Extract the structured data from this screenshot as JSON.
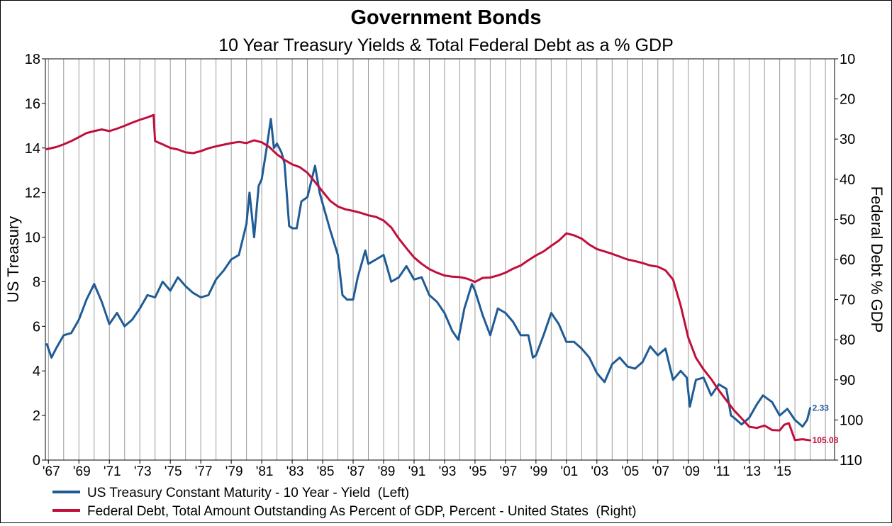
{
  "chart_data": {
    "type": "line",
    "title": "Government Bonds",
    "subtitle": "10 Year Treasury Yields & Total Federal Debt as a % GDP",
    "ylabel_left": "US Treasury",
    "ylabel_right": "Federal Debt % GDP",
    "ylim_left": [
      0,
      18
    ],
    "ylim_right": [
      10,
      110
    ],
    "right_axis_inverted": true,
    "xlim": [
      1966.8,
      2018.6
    ],
    "x_ticks": [
      1967,
      1969,
      1971,
      1973,
      1975,
      1977,
      1979,
      1981,
      1983,
      1985,
      1987,
      1989,
      1991,
      1993,
      1995,
      1997,
      1999,
      2001,
      2003,
      2005,
      2007,
      2009,
      2011,
      2013,
      2015
    ],
    "x_tick_labels": [
      "'67",
      "'69",
      "'71",
      "'73",
      "'75",
      "'77",
      "'79",
      "'81",
      "'83",
      "'85",
      "'87",
      "'89",
      "'91",
      "'93",
      "'95",
      "'97",
      "'99",
      "'01",
      "'03",
      "'05",
      "'07",
      "'09",
      "'11",
      "'13",
      "'15"
    ],
    "left_ticks": [
      0,
      2,
      4,
      6,
      8,
      10,
      12,
      14,
      16,
      18
    ],
    "right_ticks": [
      10,
      20,
      30,
      40,
      50,
      60,
      70,
      80,
      90,
      100,
      110
    ],
    "grid": "vertical",
    "legend_position": "bottom-left",
    "series": [
      {
        "name": "US Treasury Constant Maturity - 10 Year - Yield  (Left)",
        "axis": "left",
        "color": "#1f5b94",
        "end_label": "2.33",
        "x": [
          1966.9,
          1967.2,
          1967.5,
          1968.0,
          1968.5,
          1969.0,
          1969.5,
          1970.0,
          1970.5,
          1971.0,
          1971.5,
          1972.0,
          1972.5,
          1973.0,
          1973.5,
          1974.0,
          1974.5,
          1975.0,
          1975.5,
          1976.0,
          1976.5,
          1977.0,
          1977.5,
          1978.0,
          1978.5,
          1979.0,
          1979.5,
          1980.0,
          1980.2,
          1980.5,
          1980.8,
          1981.0,
          1981.3,
          1981.6,
          1981.8,
          1982.0,
          1982.3,
          1982.5,
          1982.8,
          1983.0,
          1983.3,
          1983.6,
          1984.0,
          1984.5,
          1984.8,
          1985.0,
          1985.5,
          1986.0,
          1986.3,
          1986.6,
          1987.0,
          1987.3,
          1987.8,
          1988.0,
          1988.5,
          1989.0,
          1989.5,
          1990.0,
          1990.5,
          1991.0,
          1991.5,
          1992.0,
          1992.5,
          1993.0,
          1993.5,
          1993.9,
          1994.3,
          1994.8,
          1995.0,
          1995.5,
          1996.0,
          1996.5,
          1997.0,
          1997.5,
          1998.0,
          1998.5,
          1998.8,
          1999.0,
          1999.5,
          2000.0,
          2000.5,
          2001.0,
          2001.5,
          2002.0,
          2002.5,
          2003.0,
          2003.5,
          2004.0,
          2004.5,
          2005.0,
          2005.5,
          2006.0,
          2006.5,
          2007.0,
          2007.5,
          2008.0,
          2008.5,
          2008.9,
          2009.1,
          2009.5,
          2010.0,
          2010.5,
          2011.0,
          2011.5,
          2011.8,
          2012.0,
          2012.5,
          2013.0,
          2013.5,
          2013.9,
          2014.5,
          2015.0,
          2015.5,
          2016.0,
          2016.5,
          2016.8,
          2017.0
        ],
        "y": [
          5.2,
          4.6,
          5.0,
          5.6,
          5.7,
          6.3,
          7.2,
          7.9,
          7.1,
          6.1,
          6.6,
          6.0,
          6.3,
          6.8,
          7.4,
          7.3,
          8.0,
          7.6,
          8.2,
          7.8,
          7.5,
          7.3,
          7.4,
          8.1,
          8.5,
          9.0,
          9.2,
          10.6,
          12.0,
          10.0,
          12.3,
          12.6,
          13.9,
          15.3,
          14.0,
          14.2,
          13.8,
          13.3,
          10.5,
          10.4,
          10.4,
          11.6,
          11.8,
          13.2,
          12.0,
          11.5,
          10.3,
          9.2,
          7.4,
          7.2,
          7.2,
          8.2,
          9.4,
          8.8,
          9.0,
          9.2,
          8.0,
          8.2,
          8.7,
          8.1,
          8.2,
          7.4,
          7.1,
          6.6,
          5.8,
          5.4,
          6.8,
          7.9,
          7.6,
          6.5,
          5.6,
          6.8,
          6.6,
          6.2,
          5.6,
          5.6,
          4.6,
          4.7,
          5.6,
          6.6,
          6.1,
          5.3,
          5.3,
          5.0,
          4.6,
          3.9,
          3.5,
          4.3,
          4.6,
          4.2,
          4.1,
          4.4,
          5.1,
          4.7,
          5.0,
          3.6,
          4.0,
          3.7,
          2.4,
          3.6,
          3.7,
          2.9,
          3.4,
          3.2,
          2.0,
          1.9,
          1.6,
          1.9,
          2.5,
          2.9,
          2.6,
          2.0,
          2.3,
          1.8,
          1.5,
          1.8,
          2.33
        ]
      },
      {
        "name": "Federal Debt, Total Amount Outstanding As Percent of GDP, Percent - United States  (Right)",
        "axis": "right",
        "color": "#c00f3b",
        "end_label": "105.08",
        "x": [
          1966.9,
          1967.5,
          1968.0,
          1968.5,
          1969.0,
          1969.5,
          1970.0,
          1970.5,
          1971.0,
          1971.5,
          1972.0,
          1972.5,
          1973.0,
          1973.5,
          1973.9,
          1974.0,
          1974.5,
          1975.0,
          1975.5,
          1976.0,
          1976.5,
          1977.0,
          1977.5,
          1978.0,
          1978.5,
          1979.0,
          1979.5,
          1980.0,
          1980.5,
          1981.0,
          1981.5,
          1982.0,
          1982.5,
          1983.0,
          1983.5,
          1984.0,
          1984.5,
          1985.0,
          1985.5,
          1986.0,
          1986.5,
          1987.0,
          1987.5,
          1988.0,
          1988.5,
          1989.0,
          1989.5,
          1990.0,
          1990.5,
          1991.0,
          1991.5,
          1992.0,
          1992.5,
          1993.0,
          1993.5,
          1994.0,
          1994.5,
          1995.0,
          1995.5,
          1996.0,
          1996.5,
          1997.0,
          1997.5,
          1998.0,
          1998.5,
          1999.0,
          1999.5,
          2000.0,
          2000.5,
          2001.0,
          2001.5,
          2002.0,
          2002.5,
          2003.0,
          2003.5,
          2004.0,
          2004.5,
          2005.0,
          2005.5,
          2006.0,
          2006.5,
          2007.0,
          2007.5,
          2008.0,
          2008.5,
          2009.0,
          2009.5,
          2010.0,
          2010.5,
          2011.0,
          2011.5,
          2012.0,
          2012.5,
          2013.0,
          2013.5,
          2014.0,
          2014.5,
          2015.0,
          2015.3,
          2015.6,
          2016.0,
          2016.5,
          2017.0
        ],
        "y": [
          32.5,
          32.0,
          31.3,
          30.5,
          29.5,
          28.5,
          28.0,
          27.6,
          28.0,
          27.4,
          26.7,
          25.9,
          25.2,
          24.6,
          24.0,
          30.5,
          31.3,
          32.2,
          32.6,
          33.3,
          33.5,
          33.0,
          32.3,
          31.8,
          31.4,
          31.0,
          30.7,
          31.0,
          30.3,
          30.8,
          32.0,
          33.8,
          35.2,
          36.3,
          37.0,
          38.4,
          40.7,
          43.1,
          45.4,
          46.8,
          47.5,
          47.9,
          48.4,
          49.0,
          49.4,
          50.3,
          52.0,
          54.8,
          57.2,
          59.5,
          61.1,
          62.4,
          63.3,
          64.0,
          64.3,
          64.4,
          64.8,
          65.6,
          64.6,
          64.5,
          64.0,
          63.3,
          62.3,
          61.5,
          60.2,
          59.0,
          58.0,
          56.6,
          55.3,
          53.5,
          54.0,
          54.8,
          56.3,
          57.4,
          58.0,
          58.6,
          59.3,
          60.0,
          60.4,
          60.9,
          61.5,
          61.8,
          62.7,
          65.0,
          71.5,
          79.5,
          84.5,
          87.4,
          89.8,
          92.6,
          95.1,
          97.6,
          99.6,
          101.7,
          102.0,
          101.4,
          102.5,
          102.6,
          101.2,
          100.8,
          105.0,
          104.8,
          105.08
        ]
      }
    ]
  }
}
